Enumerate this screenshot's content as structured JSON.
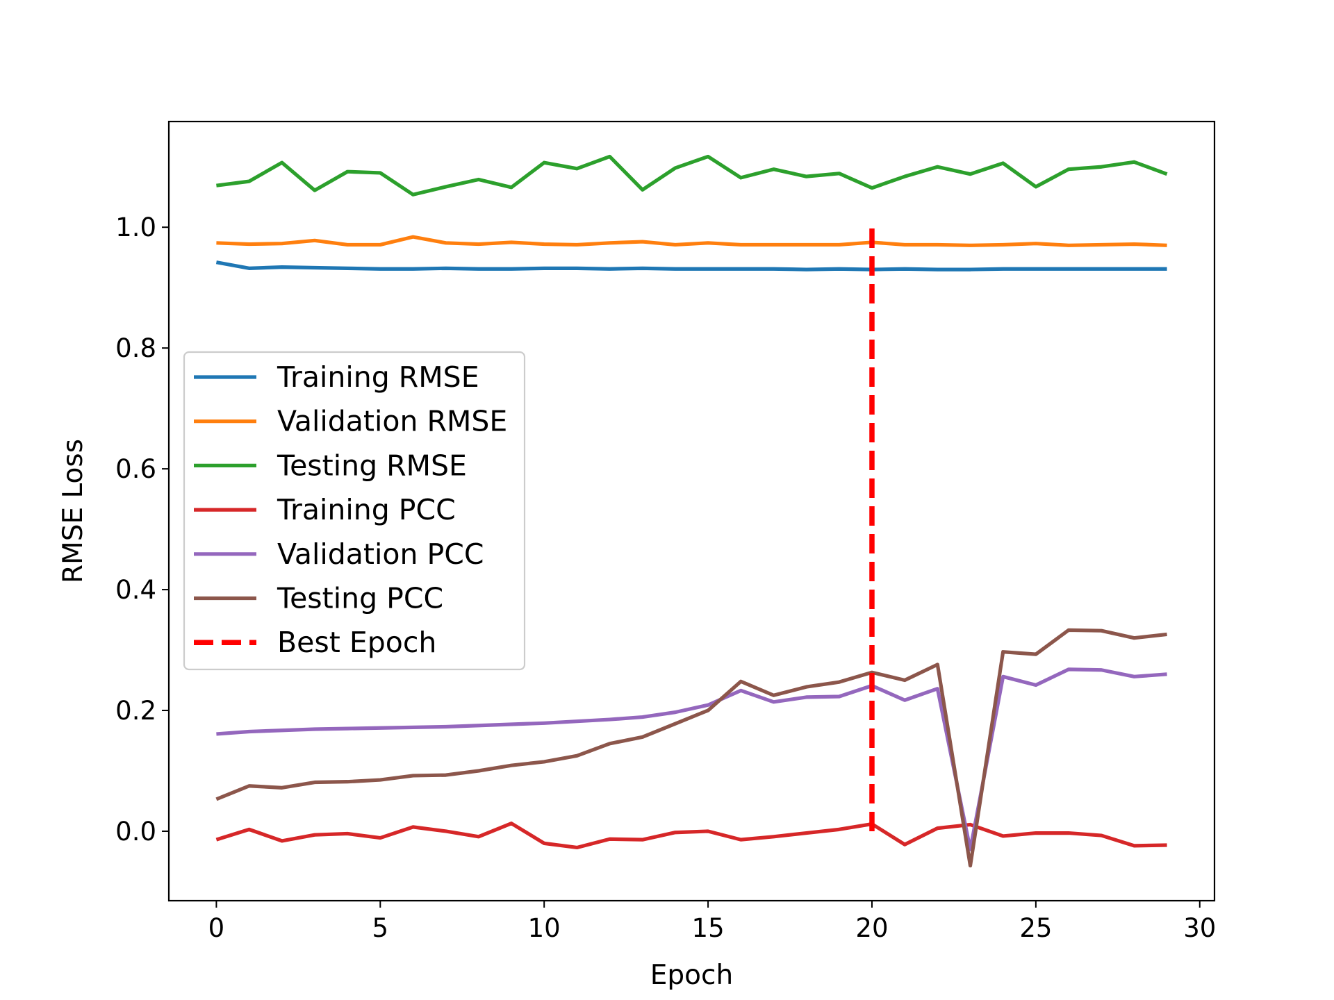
{
  "chart_data": {
    "type": "line",
    "xlabel": "Epoch",
    "ylabel": "RMSE Loss",
    "xlim": [
      -1.45,
      30.45
    ],
    "ylim": [
      -0.115,
      1.175
    ],
    "xticks": [
      0,
      5,
      10,
      15,
      20,
      25,
      30
    ],
    "xtick_labels": [
      "0",
      "5",
      "10",
      "15",
      "20",
      "25",
      "30"
    ],
    "yticks": [
      0.0,
      0.2,
      0.4,
      0.6,
      0.8,
      1.0
    ],
    "ytick_labels": [
      "0.0",
      "0.2",
      "0.4",
      "0.6",
      "0.8",
      "1.0"
    ],
    "grid": false,
    "legend_position": "center-left",
    "x": [
      0,
      1,
      2,
      3,
      4,
      5,
      6,
      7,
      8,
      9,
      10,
      11,
      12,
      13,
      14,
      15,
      16,
      17,
      18,
      19,
      20,
      21,
      22,
      23,
      24,
      25,
      26,
      27,
      28,
      29
    ],
    "series": [
      {
        "name": "Training RMSE",
        "color": "#1f77b4",
        "style": "solid",
        "values": [
          0.942,
          0.932,
          0.934,
          0.933,
          0.932,
          0.931,
          0.931,
          0.932,
          0.931,
          0.931,
          0.932,
          0.932,
          0.931,
          0.932,
          0.931,
          0.931,
          0.931,
          0.931,
          0.93,
          0.931,
          0.93,
          0.931,
          0.93,
          0.93,
          0.931,
          0.931,
          0.931,
          0.931,
          0.931,
          0.931
        ]
      },
      {
        "name": "Validation RMSE",
        "color": "#ff7f0e",
        "style": "solid",
        "values": [
          0.974,
          0.972,
          0.973,
          0.978,
          0.971,
          0.971,
          0.984,
          0.974,
          0.972,
          0.975,
          0.972,
          0.971,
          0.974,
          0.976,
          0.971,
          0.974,
          0.971,
          0.971,
          0.971,
          0.971,
          0.975,
          0.971,
          0.971,
          0.97,
          0.971,
          0.973,
          0.97,
          0.971,
          0.972,
          0.97
        ]
      },
      {
        "name": "Testing RMSE",
        "color": "#2ca02c",
        "style": "solid",
        "values": [
          1.069,
          1.076,
          1.107,
          1.061,
          1.092,
          1.09,
          1.054,
          1.067,
          1.079,
          1.066,
          1.107,
          1.097,
          1.117,
          1.062,
          1.098,
          1.117,
          1.082,
          1.096,
          1.084,
          1.089,
          1.065,
          1.084,
          1.1,
          1.088,
          1.106,
          1.067,
          1.096,
          1.1,
          1.108,
          1.088
        ]
      },
      {
        "name": "Training PCC",
        "color": "#d62728",
        "style": "solid",
        "values": [
          -0.014,
          0.003,
          -0.016,
          -0.006,
          -0.004,
          -0.011,
          0.007,
          0.0,
          -0.009,
          0.013,
          -0.02,
          -0.027,
          -0.013,
          -0.014,
          -0.002,
          0.0,
          -0.014,
          -0.009,
          -0.003,
          0.003,
          0.012,
          -0.022,
          0.005,
          0.011,
          -0.008,
          -0.003,
          -0.003,
          -0.007,
          -0.024,
          -0.023
        ]
      },
      {
        "name": "Validation PCC",
        "color": "#9467bd",
        "style": "solid",
        "values": [
          0.161,
          0.165,
          0.167,
          0.169,
          0.17,
          0.171,
          0.172,
          0.173,
          0.175,
          0.177,
          0.179,
          0.182,
          0.185,
          0.189,
          0.197,
          0.209,
          0.233,
          0.214,
          0.222,
          0.223,
          0.241,
          0.217,
          0.236,
          -0.03,
          0.256,
          0.242,
          0.268,
          0.267,
          0.256,
          0.26
        ]
      },
      {
        "name": "Testing PCC",
        "color": "#8c564b",
        "style": "solid",
        "values": [
          0.053,
          0.075,
          0.072,
          0.081,
          0.082,
          0.085,
          0.092,
          0.093,
          0.1,
          0.109,
          0.115,
          0.125,
          0.145,
          0.156,
          0.178,
          0.2,
          0.248,
          0.225,
          0.239,
          0.247,
          0.263,
          0.25,
          0.276,
          -0.057,
          0.297,
          0.293,
          0.333,
          0.332,
          0.32,
          0.326
        ]
      }
    ],
    "best_epoch": {
      "name": "Best Epoch",
      "color": "#ff0000",
      "style": "dashed",
      "x": 20,
      "y_range": [
        0.0,
        1.0
      ]
    }
  }
}
